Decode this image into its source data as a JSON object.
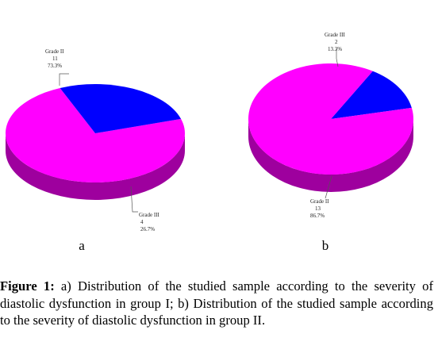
{
  "chart_data": [
    {
      "type": "pie",
      "panel_label": "a",
      "slices": [
        {
          "label": "Grade II",
          "count": "11",
          "percent": "73.3%",
          "value": 73.3,
          "color": "#ff00ff"
        },
        {
          "label": "Grade III",
          "count": "4",
          "percent": "26.7%",
          "value": 26.7,
          "color": "#0000ff"
        }
      ]
    },
    {
      "type": "pie",
      "panel_label": "b",
      "slices": [
        {
          "label": "Grade III",
          "count": "2",
          "percent": "13.3%",
          "value": 13.3,
          "color": "#0000ff"
        },
        {
          "label": "Grade II",
          "count": "13",
          "percent": "86.7%",
          "value": 86.7,
          "color": "#ff00ff"
        }
      ]
    }
  ],
  "caption": {
    "prefix": "Figure 1:",
    "text": " a) Distribution of the studied sample according to the severity of diastolic dysfunction in group I; b) Distribution of the studied sample according to the severity of diastolic dysfunction in group II."
  }
}
